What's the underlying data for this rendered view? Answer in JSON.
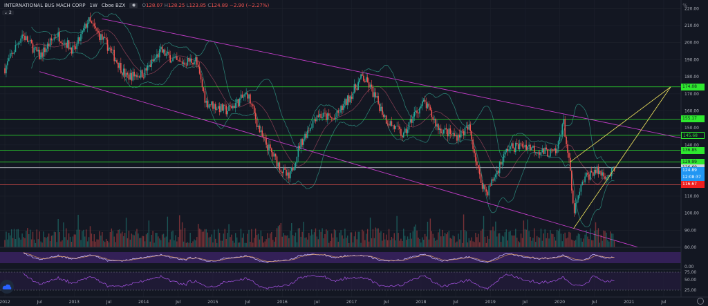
{
  "header": {
    "symbol": "INTERNATIONAL BUS MACH CORP",
    "interval": "1W",
    "exchange": "Cboe BZX",
    "open_label": "O",
    "open": "128.07",
    "high_label": "H",
    "high": "128.25",
    "low_label": "L",
    "low": "123.85",
    "close_label": "C",
    "close": "124.89",
    "change": "−2.90 (−2.27%)",
    "indicator_count": "2",
    "scale_mode": "%"
  },
  "colors": {
    "background": "#131722",
    "up": "#26a69a",
    "down": "#ef5350",
    "grid": "#1e222d",
    "band": "#2a7d72",
    "channel": "#c23cc8",
    "support": "#2ee82e",
    "triangle": "#e3d85a",
    "rsi_fill": "#3a2260"
  },
  "price_axis": {
    "ticks": [
      "220.00",
      "210.00",
      "200.00",
      "190.00",
      "180.00",
      "170.00",
      "160.00",
      "150.00",
      "140.00",
      "130.00",
      "120.00",
      "110.00",
      "100.00",
      "90.00",
      "80.00"
    ],
    "rsi_ticks": [
      "0.00"
    ],
    "osc_ticks": [
      "75.00",
      "50.00",
      "25.00"
    ]
  },
  "price_tags": [
    {
      "text": "174.08",
      "price": 174.08,
      "kind": "green"
    },
    {
      "text": "155.17",
      "price": 155.17,
      "kind": "green"
    },
    {
      "text": "145.68",
      "price": 145.68,
      "kind": "outline"
    },
    {
      "text": "136.85",
      "price": 136.85,
      "kind": "green"
    },
    {
      "text": "129.99",
      "price": 129.99,
      "kind": "green"
    },
    {
      "text": "126.69",
      "price": 126.69,
      "kind": "white"
    },
    {
      "text": "124.89",
      "price": 124.89,
      "kind": "blue"
    },
    {
      "text": "12:08:37",
      "price": 120.9,
      "kind": "blue"
    },
    {
      "text": "116.67",
      "price": 116.67,
      "kind": "red"
    }
  ],
  "time_axis": [
    {
      "label": "2012",
      "year": 2012.0
    },
    {
      "label": "Jul",
      "year": 2012.5
    },
    {
      "label": "2013",
      "year": 2013.0
    },
    {
      "label": "Jul",
      "year": 2013.5
    },
    {
      "label": "2014",
      "year": 2014.0
    },
    {
      "label": "Jul",
      "year": 2014.5
    },
    {
      "label": "2015",
      "year": 2015.0
    },
    {
      "label": "Jul",
      "year": 2015.5
    },
    {
      "label": "2016",
      "year": 2016.0
    },
    {
      "label": "Jul",
      "year": 2016.5
    },
    {
      "label": "2017",
      "year": 2017.0
    },
    {
      "label": "Jul",
      "year": 2017.5
    },
    {
      "label": "2018",
      "year": 2018.0
    },
    {
      "label": "Jul",
      "year": 2018.5
    },
    {
      "label": "2019",
      "year": 2019.0
    },
    {
      "label": "Jul",
      "year": 2019.5
    },
    {
      "label": "2020",
      "year": 2020.0
    },
    {
      "label": "Jul",
      "year": 2020.5
    },
    {
      "label": "2021",
      "year": 2021.0
    },
    {
      "label": "Jul",
      "year": 2021.5
    }
  ],
  "chart_data": {
    "type": "candlestick",
    "xlim": [
      2011.95,
      2021.75
    ],
    "ylim": [
      80,
      225
    ],
    "price_path": [
      {
        "year": 2012.0,
        "price": 185
      },
      {
        "year": 2012.25,
        "price": 205
      },
      {
        "year": 2012.5,
        "price": 192
      },
      {
        "year": 2012.75,
        "price": 205
      },
      {
        "year": 2013.0,
        "price": 195
      },
      {
        "year": 2013.2,
        "price": 213
      },
      {
        "year": 2013.5,
        "price": 197
      },
      {
        "year": 2013.75,
        "price": 180
      },
      {
        "year": 2014.0,
        "price": 182
      },
      {
        "year": 2014.25,
        "price": 195
      },
      {
        "year": 2014.5,
        "price": 188
      },
      {
        "year": 2014.75,
        "price": 190
      },
      {
        "year": 2014.9,
        "price": 165
      },
      {
        "year": 2015.2,
        "price": 160
      },
      {
        "year": 2015.5,
        "price": 170
      },
      {
        "year": 2015.7,
        "price": 145
      },
      {
        "year": 2016.0,
        "price": 125
      },
      {
        "year": 2016.1,
        "price": 120
      },
      {
        "year": 2016.25,
        "price": 140
      },
      {
        "year": 2016.5,
        "price": 158
      },
      {
        "year": 2016.75,
        "price": 155
      },
      {
        "year": 2017.0,
        "price": 170
      },
      {
        "year": 2017.15,
        "price": 180
      },
      {
        "year": 2017.25,
        "price": 175
      },
      {
        "year": 2017.5,
        "price": 155
      },
      {
        "year": 2017.75,
        "price": 145
      },
      {
        "year": 2017.9,
        "price": 158
      },
      {
        "year": 2018.05,
        "price": 165
      },
      {
        "year": 2018.25,
        "price": 150
      },
      {
        "year": 2018.5,
        "price": 145
      },
      {
        "year": 2018.7,
        "price": 150
      },
      {
        "year": 2018.85,
        "price": 120
      },
      {
        "year": 2018.95,
        "price": 112
      },
      {
        "year": 2019.25,
        "price": 138
      },
      {
        "year": 2019.5,
        "price": 140
      },
      {
        "year": 2019.75,
        "price": 136
      },
      {
        "year": 2019.95,
        "price": 135
      },
      {
        "year": 2020.05,
        "price": 155
      },
      {
        "year": 2020.15,
        "price": 125
      },
      {
        "year": 2020.2,
        "price": 100
      },
      {
        "year": 2020.35,
        "price": 120
      },
      {
        "year": 2020.5,
        "price": 125
      },
      {
        "year": 2020.7,
        "price": 122
      },
      {
        "year": 2020.8,
        "price": 124.89
      }
    ],
    "horizontal_levels": [
      {
        "price": 174.08,
        "color": "green"
      },
      {
        "price": 155.17,
        "color": "green"
      },
      {
        "price": 145.68,
        "color": "green"
      },
      {
        "price": 136.85,
        "color": "green"
      },
      {
        "price": 129.99,
        "color": "green"
      },
      {
        "price": 126.69,
        "color": "white"
      },
      {
        "price": 116.67,
        "color": "red"
      }
    ],
    "channel_lines": [
      {
        "from": {
          "year": 2013.4,
          "price": 214
        },
        "to": {
          "year": 2021.75,
          "price": 144
        }
      },
      {
        "from": {
          "year": 2012.5,
          "price": 183
        },
        "to": {
          "year": 2021.3,
          "price": 78
        }
      }
    ],
    "triangle_lines": [
      {
        "from": {
          "year": 2020.15,
          "price": 130
        },
        "to": {
          "year": 2021.6,
          "price": 174
        }
      },
      {
        "from": {
          "year": 2020.2,
          "price": 91
        },
        "to": {
          "year": 2021.6,
          "price": 174
        }
      }
    ]
  }
}
